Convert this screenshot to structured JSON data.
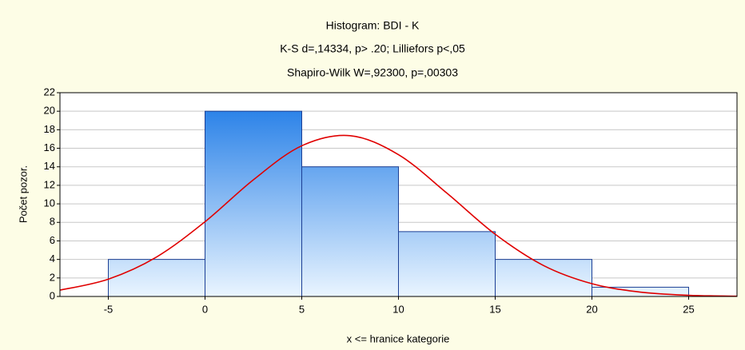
{
  "chart_data": {
    "type": "histogram",
    "title": "Histogram: BDI - K",
    "subtitle": [
      "K-S d=,14334, p> .20; Lilliefors p<,05",
      "Shapiro-Wilk W=,92300, p=,00303"
    ],
    "xlabel": "x <= hranice kategorie",
    "ylabel": "Počet pozor.",
    "bins": [
      -5,
      0,
      5,
      10,
      15,
      20,
      25
    ],
    "counts": [
      4,
      20,
      14,
      7,
      4,
      1
    ],
    "color": "#1a78e6",
    "curve": {
      "color": "#e00000",
      "x": [
        -7.5,
        -5,
        -2.5,
        0,
        2.5,
        5,
        7.5,
        10,
        12.5,
        15,
        17.5,
        20,
        22.5,
        25,
        27.5
      ],
      "values": [
        0.68,
        1.87,
        4.27,
        8.07,
        12.6,
        16.27,
        17.36,
        15.31,
        11.16,
        6.72,
        3.34,
        1.38,
        0.47,
        0.13,
        0.03
      ]
    },
    "xlim": [
      -7.5,
      27.5
    ],
    "xticks": [
      -5,
      0,
      5,
      10,
      15,
      20,
      25
    ],
    "ylim": [
      0,
      22
    ],
    "yticks": [
      0,
      2,
      4,
      6,
      8,
      10,
      12,
      14,
      16,
      18,
      20,
      22
    ],
    "grid": true
  }
}
